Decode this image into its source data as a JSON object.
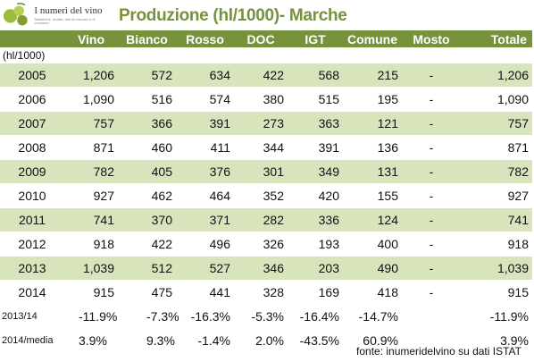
{
  "logo": {
    "title": "I numeri del vino",
    "subtitle": "Statistiche, analisi, dati di mercato e di consumo"
  },
  "title": "Produzione (hl/1000)- Marche",
  "columns": [
    "",
    "Vino",
    "Bianco",
    "Rosso",
    "DOC",
    "IGT",
    "Comune",
    "Mosto",
    "Totale"
  ],
  "unit": "(hl/1000)",
  "rows": [
    [
      "2005",
      "1,206",
      "572",
      "634",
      "422",
      "568",
      "215",
      "-",
      "1,206"
    ],
    [
      "2006",
      "1,090",
      "516",
      "574",
      "380",
      "515",
      "195",
      "-",
      "1,090"
    ],
    [
      "2007",
      "757",
      "366",
      "391",
      "273",
      "363",
      "121",
      "-",
      "757"
    ],
    [
      "2008",
      "871",
      "460",
      "411",
      "344",
      "391",
      "136",
      "-",
      "871"
    ],
    [
      "2009",
      "782",
      "405",
      "376",
      "301",
      "349",
      "131",
      "-",
      "782"
    ],
    [
      "2010",
      "927",
      "462",
      "464",
      "352",
      "420",
      "155",
      "-",
      "927"
    ],
    [
      "2011",
      "741",
      "370",
      "371",
      "282",
      "336",
      "124",
      "-",
      "741"
    ],
    [
      "2012",
      "918",
      "422",
      "496",
      "326",
      "193",
      "400",
      "-",
      "918"
    ],
    [
      "2013",
      "1,039",
      "512",
      "527",
      "346",
      "203",
      "490",
      "-",
      "1,039"
    ],
    [
      "2014",
      "915",
      "475",
      "441",
      "328",
      "169",
      "418",
      "-",
      "915"
    ]
  ],
  "pct_rows": [
    [
      "2013/14",
      "-11.9%",
      "-7.3%",
      "-16.3%",
      "-5.3%",
      "-16.4%",
      "-14.7%",
      "",
      "-11.9%"
    ],
    [
      "2014/media",
      "3.9%",
      "9.3%",
      "-1.4%",
      "2.0%",
      "-43.5%",
      "60.9%",
      "",
      "3.9%"
    ]
  ],
  "source": "fonte: inumeridelvino su dati ISTAT",
  "colors": {
    "header_bg": "#76933c",
    "band": "#d7e4bc",
    "title": "#76923c"
  }
}
